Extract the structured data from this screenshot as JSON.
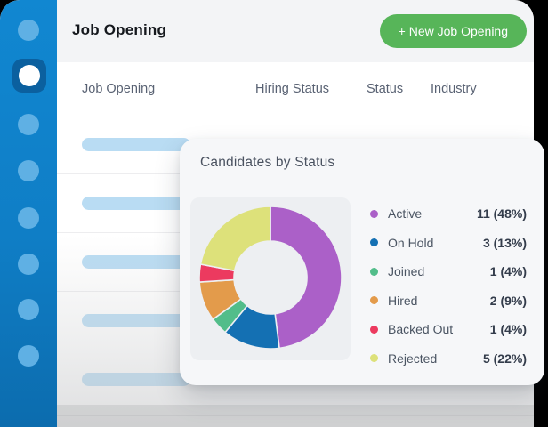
{
  "topbar": {
    "title": "Job Opening",
    "new_job_button_label": "+ New Job Opening"
  },
  "sidebar": {
    "items": [
      {
        "id": "sidebar-item-1",
        "active": false
      },
      {
        "id": "sidebar-item-2",
        "active": true
      },
      {
        "id": "sidebar-item-3",
        "active": false
      },
      {
        "id": "sidebar-item-4",
        "active": false
      },
      {
        "id": "sidebar-item-5",
        "active": false
      },
      {
        "id": "sidebar-item-6",
        "active": false
      },
      {
        "id": "sidebar-item-7",
        "active": false
      },
      {
        "id": "sidebar-item-8",
        "active": false
      }
    ]
  },
  "table": {
    "columns": [
      "Job Opening",
      "Hiring Status",
      "Status",
      "Industry"
    ],
    "skeleton_row_count": 5
  },
  "card": {
    "title": "Candidates by Status"
  },
  "chart_data": {
    "type": "pie",
    "donut": true,
    "title": "Candidates by Status",
    "legend_position": "right",
    "segments": [
      {
        "label": "Active",
        "count": 11,
        "percent": 48,
        "color": "#ab60c8",
        "value_label": "11 (48%)"
      },
      {
        "label": "On Hold",
        "count": 3,
        "percent": 13,
        "color": "#1470b3",
        "value_label": "3 (13%)"
      },
      {
        "label": "Joined",
        "count": 1,
        "percent": 4,
        "color": "#52bd8a",
        "value_label": "1 (4%)"
      },
      {
        "label": "Hired",
        "count": 2,
        "percent": 9,
        "color": "#e39b4b",
        "value_label": "2 (9%)"
      },
      {
        "label": "Backed Out",
        "count": 1,
        "percent": 4,
        "color": "#ec3a5f",
        "value_label": "1 (4%)"
      },
      {
        "label": "Rejected",
        "count": 5,
        "percent": 22,
        "color": "#dde17a",
        "value_label": "5 (22%)"
      }
    ]
  },
  "colors": {
    "sidebar_top": "#1187d1",
    "sidebar_bottom": "#0c6cae",
    "sidebar_icon": "#5fb0e4",
    "active_icon_bg": "#0b609f",
    "button_green": "#57b559",
    "skeleton_bar": "#b9dcf3",
    "chart_panel_bg": "#edeff2"
  }
}
